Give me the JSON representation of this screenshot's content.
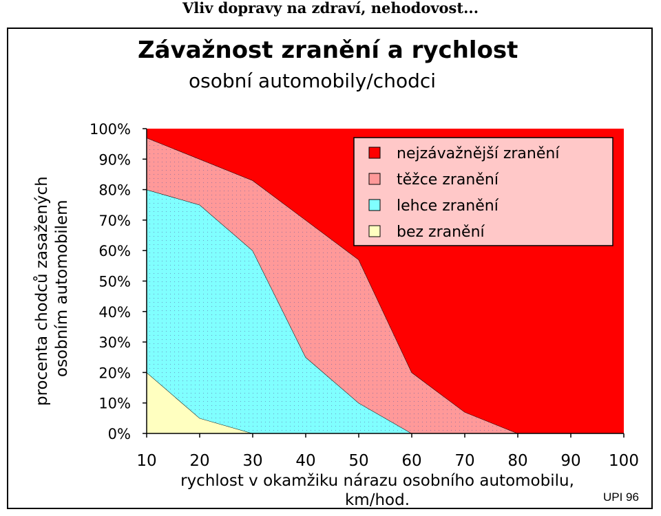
{
  "slide": {
    "title": "Vliv dopravy na zdraví, nehodovost...",
    "credit": "UPI 96"
  },
  "chart_data": {
    "type": "area",
    "stacked": true,
    "percent": true,
    "title": "Závažnost zranění a rychlost",
    "subtitle": "osobní automobily/chodci",
    "xlabel_line1": "rychlost v okamžiku nárazu osobního automobilu,",
    "xlabel_line2": "km/hod.",
    "ylabel_line1": "procenta chodců zasažených",
    "ylabel_line2": "osobním automobilem",
    "x": [
      10,
      20,
      30,
      40,
      50,
      60,
      70,
      80,
      90,
      100
    ],
    "xlim": [
      10,
      100
    ],
    "ylim": [
      0,
      100
    ],
    "y_ticks": [
      "0%",
      "10%",
      "20%",
      "30%",
      "40%",
      "50%",
      "60%",
      "70%",
      "80%",
      "90%",
      "100%"
    ],
    "x_ticks": [
      "10",
      "20",
      "30",
      "40",
      "50",
      "60",
      "70",
      "80",
      "90",
      "100"
    ],
    "series": [
      {
        "name": "bez zranění",
        "color": "#FFFFC0",
        "values": [
          20,
          5,
          0,
          0,
          0,
          0,
          0,
          0,
          0,
          0
        ]
      },
      {
        "name": "lehce zranění",
        "color": "#80FFFF",
        "values": [
          60,
          70,
          60,
          25,
          10,
          0,
          0,
          0,
          0,
          0
        ]
      },
      {
        "name": "těžce zranění",
        "color": "#FF9999",
        "values": [
          17,
          15,
          23,
          45,
          47,
          20,
          7,
          0,
          0,
          0
        ]
      },
      {
        "name": "nejzávažnější zranění",
        "color": "#FF0000",
        "values": [
          3,
          10,
          17,
          30,
          43,
          80,
          93,
          100,
          100,
          100
        ]
      }
    ],
    "legend_order": [
      "nejzávažnější zranění",
      "těžce zranění",
      "lehce zranění",
      "bez zranění"
    ],
    "legend_bg": "#FFC8C8",
    "legend_placement": "top-right",
    "grid": false
  }
}
